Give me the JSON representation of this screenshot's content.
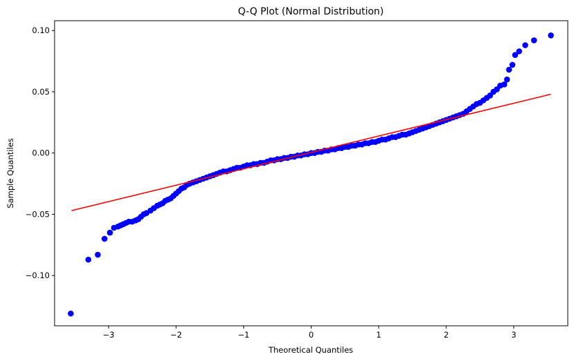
{
  "chart_data": {
    "type": "scatter",
    "title": "Q-Q Plot (Normal Distribution)",
    "xlabel": "Theoretical Quantiles",
    "ylabel": "Sample Quantiles",
    "xlim": [
      -3.8,
      3.8
    ],
    "ylim": [
      -0.141,
      0.108
    ],
    "xticks": [
      -3,
      -2,
      -1,
      0,
      1,
      2,
      3
    ],
    "xtick_labels": [
      "−3",
      "−2",
      "−1",
      "0",
      "1",
      "2",
      "3"
    ],
    "yticks": [
      -0.1,
      -0.05,
      0.0,
      0.05,
      0.1
    ],
    "ytick_labels": [
      "−0.10",
      "−0.05",
      "0.00",
      "0.05",
      "0.10"
    ],
    "grid": false,
    "series": [
      {
        "kind": "points",
        "color": "#0000ff",
        "marker": "circle",
        "points": [
          [
            -3.56,
            -0.131
          ],
          [
            -3.3,
            -0.087
          ],
          [
            -3.16,
            -0.083
          ],
          [
            -3.06,
            -0.07
          ],
          [
            -2.98,
            -0.065
          ],
          [
            -2.92,
            -0.061
          ],
          [
            -2.86,
            -0.06
          ],
          [
            -2.82,
            -0.059
          ],
          [
            -2.78,
            -0.058
          ],
          [
            -2.74,
            -0.057
          ],
          [
            -2.7,
            -0.056
          ],
          [
            -2.65,
            -0.056
          ],
          [
            -2.6,
            -0.055
          ],
          [
            -2.56,
            -0.054
          ],
          [
            -2.52,
            -0.052
          ],
          [
            -2.48,
            -0.05
          ],
          [
            -2.44,
            -0.049
          ],
          [
            -2.38,
            -0.047
          ],
          [
            -2.33,
            -0.045
          ],
          [
            -2.28,
            -0.043
          ],
          [
            -2.24,
            -0.042
          ],
          [
            -2.2,
            -0.041
          ],
          [
            -2.16,
            -0.039
          ],
          [
            -2.12,
            -0.038
          ],
          [
            -2.08,
            -0.037
          ],
          [
            -2.04,
            -0.035
          ],
          [
            -2.0,
            -0.033
          ],
          [
            -1.96,
            -0.031
          ],
          [
            -1.92,
            -0.029
          ],
          [
            -1.88,
            -0.028
          ],
          [
            -1.84,
            -0.026
          ],
          [
            -1.8,
            -0.025
          ],
          [
            -1.75,
            -0.024
          ],
          [
            -1.7,
            -0.023
          ],
          [
            -1.65,
            -0.022
          ],
          [
            -1.6,
            -0.021
          ],
          [
            -1.55,
            -0.02
          ],
          [
            -1.5,
            -0.019
          ],
          [
            -1.45,
            -0.018
          ],
          [
            -1.4,
            -0.017
          ],
          [
            -1.35,
            -0.016
          ],
          [
            -1.3,
            -0.015
          ],
          [
            -1.25,
            -0.015
          ],
          [
            -1.2,
            -0.014
          ],
          [
            -1.15,
            -0.013
          ],
          [
            -1.1,
            -0.012
          ],
          [
            -1.05,
            -0.012
          ],
          [
            -1.0,
            -0.011
          ],
          [
            -0.95,
            -0.01
          ],
          [
            -0.9,
            -0.01
          ],
          [
            -0.85,
            -0.009
          ],
          [
            -0.8,
            -0.009
          ],
          [
            -0.75,
            -0.008
          ],
          [
            -0.7,
            -0.008
          ],
          [
            -0.65,
            -0.007
          ],
          [
            -0.6,
            -0.006
          ],
          [
            -0.55,
            -0.006
          ],
          [
            -0.5,
            -0.005
          ],
          [
            -0.45,
            -0.005
          ],
          [
            -0.4,
            -0.004
          ],
          [
            -0.35,
            -0.004
          ],
          [
            -0.3,
            -0.003
          ],
          [
            -0.25,
            -0.003
          ],
          [
            -0.2,
            -0.002
          ],
          [
            -0.15,
            -0.002
          ],
          [
            -0.1,
            -0.001
          ],
          [
            -0.05,
            -0.001
          ],
          [
            0.0,
            0.0
          ],
          [
            0.05,
            0.0
          ],
          [
            0.1,
            0.001
          ],
          [
            0.15,
            0.001
          ],
          [
            0.2,
            0.002
          ],
          [
            0.25,
            0.002
          ],
          [
            0.3,
            0.003
          ],
          [
            0.35,
            0.003
          ],
          [
            0.4,
            0.004
          ],
          [
            0.45,
            0.004
          ],
          [
            0.5,
            0.005
          ],
          [
            0.55,
            0.005
          ],
          [
            0.6,
            0.006
          ],
          [
            0.65,
            0.006
          ],
          [
            0.7,
            0.007
          ],
          [
            0.75,
            0.007
          ],
          [
            0.8,
            0.008
          ],
          [
            0.85,
            0.008
          ],
          [
            0.9,
            0.009
          ],
          [
            0.95,
            0.009
          ],
          [
            1.0,
            0.01
          ],
          [
            1.05,
            0.011
          ],
          [
            1.1,
            0.011
          ],
          [
            1.15,
            0.012
          ],
          [
            1.2,
            0.013
          ],
          [
            1.25,
            0.013
          ],
          [
            1.3,
            0.014
          ],
          [
            1.35,
            0.015
          ],
          [
            1.4,
            0.015
          ],
          [
            1.45,
            0.016
          ],
          [
            1.5,
            0.017
          ],
          [
            1.55,
            0.018
          ],
          [
            1.6,
            0.019
          ],
          [
            1.65,
            0.02
          ],
          [
            1.7,
            0.021
          ],
          [
            1.75,
            0.022
          ],
          [
            1.8,
            0.023
          ],
          [
            1.85,
            0.024
          ],
          [
            1.9,
            0.025
          ],
          [
            1.95,
            0.026
          ],
          [
            2.0,
            0.027
          ],
          [
            2.05,
            0.028
          ],
          [
            2.1,
            0.029
          ],
          [
            2.15,
            0.03
          ],
          [
            2.2,
            0.031
          ],
          [
            2.25,
            0.032
          ],
          [
            2.3,
            0.034
          ],
          [
            2.35,
            0.036
          ],
          [
            2.4,
            0.038
          ],
          [
            2.45,
            0.04
          ],
          [
            2.5,
            0.041
          ],
          [
            2.55,
            0.043
          ],
          [
            2.6,
            0.045
          ],
          [
            2.65,
            0.047
          ],
          [
            2.7,
            0.05
          ],
          [
            2.75,
            0.052
          ],
          [
            2.8,
            0.055
          ],
          [
            2.86,
            0.056
          ],
          [
            2.9,
            0.06
          ],
          [
            2.93,
            0.068
          ],
          [
            2.98,
            0.072
          ],
          [
            3.02,
            0.08
          ],
          [
            3.08,
            0.083
          ],
          [
            3.17,
            0.088
          ],
          [
            3.3,
            0.092
          ],
          [
            3.55,
            0.096
          ]
        ]
      },
      {
        "kind": "line",
        "color": "#ff0000",
        "points": [
          [
            -3.55,
            -0.047
          ],
          [
            3.55,
            0.048
          ]
        ]
      }
    ]
  }
}
